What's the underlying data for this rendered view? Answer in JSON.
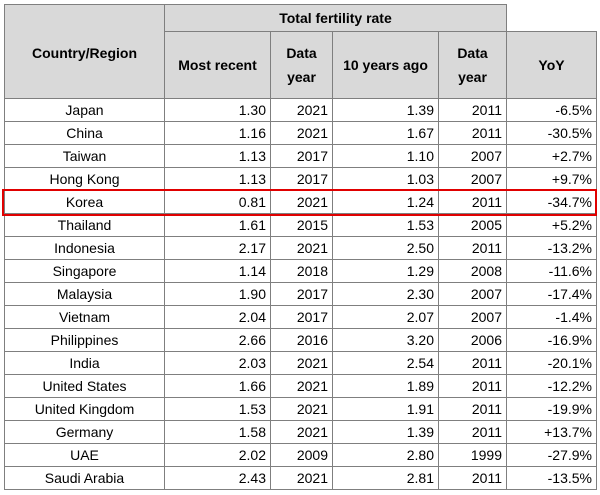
{
  "header": {
    "country_region": "Country/Region",
    "group_title": "Total fertility rate",
    "most_recent": "Most recent",
    "data_year_line1": "Data",
    "data_year_line2": "year",
    "ten_years_ago": "10 years ago",
    "yoy": "YoY"
  },
  "rows": [
    {
      "country": "Japan",
      "recent": "1.30",
      "recent_year": "2021",
      "prior": "1.39",
      "prior_year": "2011",
      "yoy": "-6.5%"
    },
    {
      "country": "China",
      "recent": "1.16",
      "recent_year": "2021",
      "prior": "1.67",
      "prior_year": "2011",
      "yoy": "-30.5%"
    },
    {
      "country": "Taiwan",
      "recent": "1.13",
      "recent_year": "2017",
      "prior": "1.10",
      "prior_year": "2007",
      "yoy": "+2.7%"
    },
    {
      "country": "Hong Kong",
      "recent": "1.13",
      "recent_year": "2017",
      "prior": "1.03",
      "prior_year": "2007",
      "yoy": "+9.7%"
    },
    {
      "country": "Korea",
      "recent": "0.81",
      "recent_year": "2021",
      "prior": "1.24",
      "prior_year": "2011",
      "yoy": "-34.7%"
    },
    {
      "country": "Thailand",
      "recent": "1.61",
      "recent_year": "2015",
      "prior": "1.53",
      "prior_year": "2005",
      "yoy": "+5.2%"
    },
    {
      "country": "Indonesia",
      "recent": "2.17",
      "recent_year": "2021",
      "prior": "2.50",
      "prior_year": "2011",
      "yoy": "-13.2%"
    },
    {
      "country": "Singapore",
      "recent": "1.14",
      "recent_year": "2018",
      "prior": "1.29",
      "prior_year": "2008",
      "yoy": "-11.6%"
    },
    {
      "country": "Malaysia",
      "recent": "1.90",
      "recent_year": "2017",
      "prior": "2.30",
      "prior_year": "2007",
      "yoy": "-17.4%"
    },
    {
      "country": "Vietnam",
      "recent": "2.04",
      "recent_year": "2017",
      "prior": "2.07",
      "prior_year": "2007",
      "yoy": "-1.4%"
    },
    {
      "country": "Philippines",
      "recent": "2.66",
      "recent_year": "2016",
      "prior": "3.20",
      "prior_year": "2006",
      "yoy": "-16.9%"
    },
    {
      "country": "India",
      "recent": "2.03",
      "recent_year": "2021",
      "prior": "2.54",
      "prior_year": "2011",
      "yoy": "-20.1%"
    },
    {
      "country": "United States",
      "recent": "1.66",
      "recent_year": "2021",
      "prior": "1.89",
      "prior_year": "2011",
      "yoy": "-12.2%"
    },
    {
      "country": "United Kingdom",
      "recent": "1.53",
      "recent_year": "2021",
      "prior": "1.91",
      "prior_year": "2011",
      "yoy": "-19.9%"
    },
    {
      "country": "Germany",
      "recent": "1.58",
      "recent_year": "2021",
      "prior": "1.39",
      "prior_year": "2011",
      "yoy": "+13.7%"
    },
    {
      "country": "UAE",
      "recent": "2.02",
      "recent_year": "2009",
      "prior": "2.80",
      "prior_year": "1999",
      "yoy": "-27.9%"
    },
    {
      "country": "Saudi Arabia",
      "recent": "2.43",
      "recent_year": "2021",
      "prior": "2.81",
      "prior_year": "2011",
      "yoy": "-13.5%"
    }
  ],
  "highlighted_country": "Korea",
  "colors": {
    "header_bg": "#d9d9d9",
    "highlight": "#e00000",
    "grid": "#7f7f7f"
  },
  "chart_data": {
    "type": "table",
    "columns": [
      "Country/Region",
      "Most recent",
      "Data year",
      "10 years ago",
      "Data year",
      "YoY"
    ],
    "column_group": "Total fertility rate",
    "countries": [
      "Japan",
      "China",
      "Taiwan",
      "Hong Kong",
      "Korea",
      "Thailand",
      "Indonesia",
      "Singapore",
      "Malaysia",
      "Vietnam",
      "Philippines",
      "India",
      "United States",
      "United Kingdom",
      "Germany",
      "UAE",
      "Saudi Arabia"
    ],
    "most_recent": [
      1.3,
      1.16,
      1.13,
      1.13,
      0.81,
      1.61,
      2.17,
      1.14,
      1.9,
      2.04,
      2.66,
      2.03,
      1.66,
      1.53,
      1.58,
      2.02,
      2.43
    ],
    "most_recent_year": [
      2021,
      2021,
      2017,
      2017,
      2021,
      2015,
      2021,
      2018,
      2017,
      2017,
      2016,
      2021,
      2021,
      2021,
      2021,
      2009,
      2021
    ],
    "ten_years_ago": [
      1.39,
      1.67,
      1.1,
      1.03,
      1.24,
      1.53,
      2.5,
      1.29,
      2.3,
      2.07,
      3.2,
      2.54,
      1.89,
      1.91,
      1.39,
      2.8,
      2.81
    ],
    "ten_years_ago_year": [
      2011,
      2011,
      2007,
      2007,
      2011,
      2005,
      2011,
      2008,
      2007,
      2007,
      2006,
      2011,
      2011,
      2011,
      2011,
      1999,
      2011
    ],
    "yoy_percent": [
      -6.5,
      -30.5,
      2.7,
      9.7,
      -34.7,
      5.2,
      -13.2,
      -11.6,
      -17.4,
      -1.4,
      -16.9,
      -20.1,
      -12.2,
      -19.9,
      13.7,
      -27.9,
      -13.5
    ]
  }
}
